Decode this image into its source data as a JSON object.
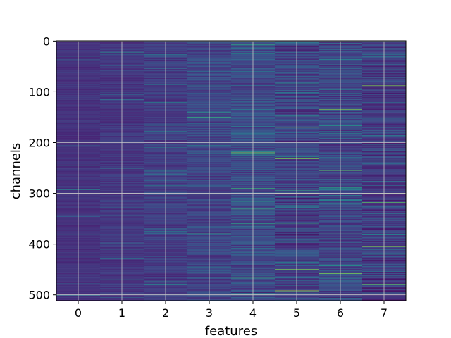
{
  "chart_data": {
    "type": "heatmap",
    "title": "",
    "xlabel": "features",
    "ylabel": "channels",
    "x_categories": [
      "0",
      "1",
      "2",
      "3",
      "4",
      "5",
      "6",
      "7"
    ],
    "y_ticks": [
      0,
      100,
      200,
      300,
      400,
      500
    ],
    "ylim": [
      511.5,
      -0.5
    ],
    "n_rows": 512,
    "n_cols": 8,
    "colormap": "viridis",
    "grid": true,
    "grid_color": "#c8c8c8",
    "column_base_level": [
      0.18,
      0.2,
      0.22,
      0.26,
      0.28,
      0.24,
      0.26,
      0.2
    ],
    "column_variability": [
      0.1,
      0.13,
      0.17,
      0.23,
      0.25,
      0.31,
      0.29,
      0.26
    ],
    "bright_rows": [
      {
        "col": 0,
        "row": 30,
        "level": 0.45
      },
      {
        "col": 1,
        "row": 22,
        "level": 0.6
      },
      {
        "col": 1,
        "row": 410,
        "level": 0.55
      },
      {
        "col": 1,
        "row": 470,
        "level": 0.5
      },
      {
        "col": 2,
        "row": 285,
        "level": 0.55
      },
      {
        "col": 2,
        "row": 480,
        "level": 0.6
      },
      {
        "col": 3,
        "row": 140,
        "level": 0.65
      },
      {
        "col": 3,
        "row": 380,
        "level": 0.8
      },
      {
        "col": 4,
        "row": 0,
        "level": 0.85
      },
      {
        "col": 4,
        "row": 220,
        "level": 0.85
      },
      {
        "col": 4,
        "row": 290,
        "level": 0.75
      },
      {
        "col": 4,
        "row": 360,
        "level": 0.7
      },
      {
        "col": 4,
        "row": 500,
        "level": 0.8
      },
      {
        "col": 5,
        "row": 170,
        "level": 0.8
      },
      {
        "col": 5,
        "row": 232,
        "level": 0.85
      },
      {
        "col": 5,
        "row": 300,
        "level": 0.95
      },
      {
        "col": 5,
        "row": 450,
        "level": 0.85
      },
      {
        "col": 5,
        "row": 492,
        "level": 0.9
      },
      {
        "col": 6,
        "row": 135,
        "level": 0.85
      },
      {
        "col": 6,
        "row": 255,
        "level": 0.8
      },
      {
        "col": 6,
        "row": 380,
        "level": 0.75
      },
      {
        "col": 6,
        "row": 458,
        "level": 0.85
      },
      {
        "col": 7,
        "row": 10,
        "level": 0.95
      },
      {
        "col": 7,
        "row": 88,
        "level": 0.85
      },
      {
        "col": 7,
        "row": 300,
        "level": 0.9
      },
      {
        "col": 7,
        "row": 318,
        "level": 0.8
      },
      {
        "col": 7,
        "row": 405,
        "level": 0.85
      },
      {
        "col": 7,
        "row": 480,
        "level": 0.8
      }
    ],
    "dark_rows": [
      {
        "col": 4,
        "row": 495,
        "level": 0.05
      },
      {
        "col": 5,
        "row": 382,
        "level": 0.02
      },
      {
        "col": 5,
        "row": 395,
        "level": 0.04
      },
      {
        "col": 6,
        "row": 505,
        "level": 0.05
      },
      {
        "col": 7,
        "row": 395,
        "level": 0.05
      }
    ]
  }
}
